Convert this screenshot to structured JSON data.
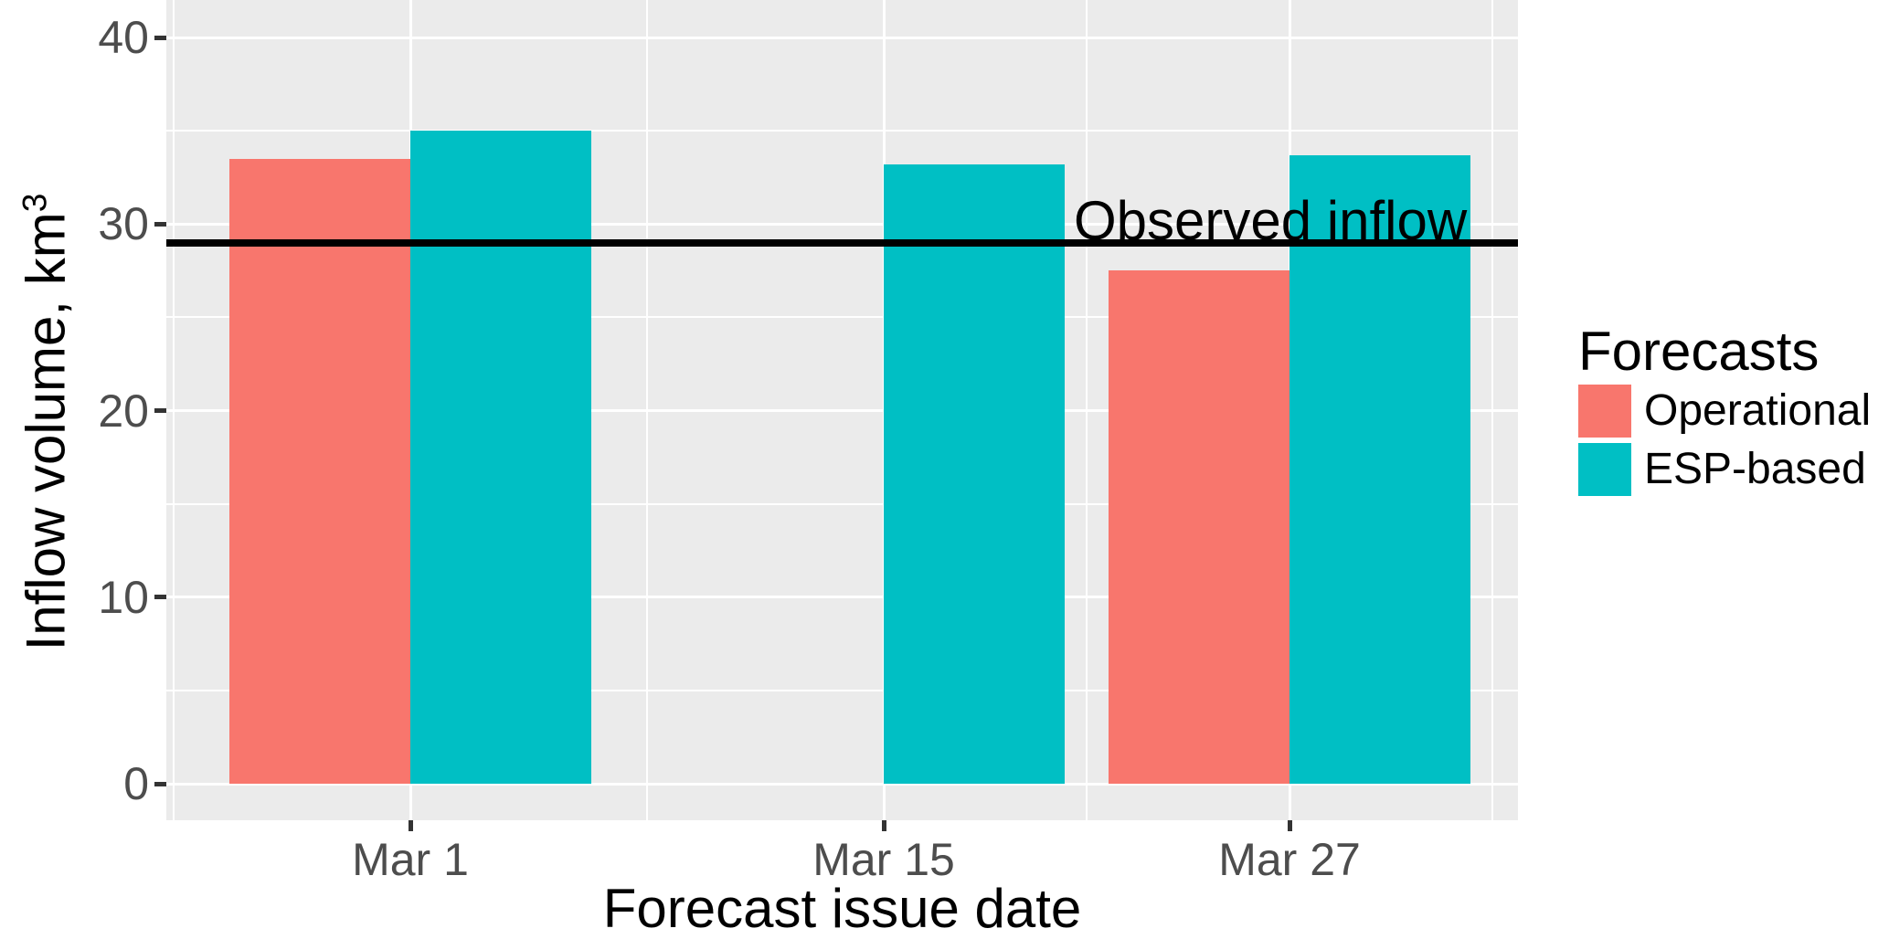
{
  "chart_data": {
    "type": "bar",
    "categories": [
      "Mar 1",
      "Mar 15",
      "Mar 27"
    ],
    "category_day_offsets": [
      0,
      14,
      26
    ],
    "series": [
      {
        "name": "Operational",
        "color": "#F8766D",
        "values": [
          33.5,
          null,
          27.5
        ]
      },
      {
        "name": "ESP-based",
        "color": "#00BFC4",
        "values": [
          35.0,
          33.2,
          33.7
        ]
      }
    ],
    "reference_line": {
      "label": "Observed inflow",
      "value": 29
    },
    "xlabel": "Forecast issue date",
    "ylabel": "Inflow volume, km",
    "ylabel_superscript": "3",
    "y_major_ticks": [
      0,
      10,
      20,
      30,
      40
    ],
    "y_minor_ticks": [
      5,
      15,
      25,
      35
    ],
    "x_minor_day_offsets": [
      -7,
      7,
      20,
      32
    ],
    "ylim": [
      0,
      44
    ],
    "grid": true,
    "legend": {
      "title": "Forecasts",
      "position": "right"
    },
    "colors": {
      "panel_bg": "#EBEBEB",
      "grid": "#FFFFFF",
      "tick_label": "#4D4D4D",
      "tick_mark": "#333333",
      "reference_line": "#000000"
    }
  }
}
